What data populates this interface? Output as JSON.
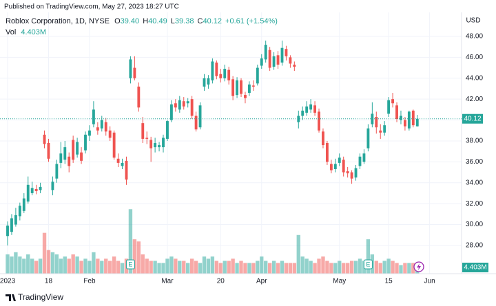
{
  "chart_data": {
    "type": "candlestick",
    "published": "Published on TradingView.com, May 27, 2023 18:27 UTC",
    "legend": {
      "symbol": "Roblox Corporation, 1D, NYSE",
      "open_label": "O",
      "open": "39.40",
      "high_label": "H",
      "high": "40.49",
      "low_label": "L",
      "low": "39.38",
      "close_label": "C",
      "close": "40.12",
      "change": "+0.61 (+1.54%)",
      "volume_label": "Vol",
      "volume": "4.403M"
    },
    "currency": "USD",
    "last_price_label": "40.12",
    "last_volume_label": "4.403M",
    "footer": "TradingView",
    "up_color": "#26a69a",
    "down_color": "#ef5350",
    "grid": true,
    "xlim": [
      -1.85,
      110.8
    ],
    "xticks": [
      {
        "value": 0,
        "label": "2023"
      },
      {
        "value": 10,
        "label": "18"
      },
      {
        "value": 20,
        "label": "Feb"
      },
      {
        "value": 39,
        "label": "Mar"
      },
      {
        "value": 52,
        "label": "20"
      },
      {
        "value": 62,
        "label": "Apr"
      },
      {
        "value": 81,
        "label": "May"
      },
      {
        "value": 93,
        "label": "15"
      },
      {
        "value": 103,
        "label": "Jun"
      }
    ],
    "ylim": [
      25.3,
      50.3
    ],
    "yticks": [
      {
        "value": 28,
        "label": "28.00"
      },
      {
        "value": 30,
        "label": "30.00"
      },
      {
        "value": 32,
        "label": "32.00"
      },
      {
        "value": 34,
        "label": "34.00"
      },
      {
        "value": 36,
        "label": "36.00"
      },
      {
        "value": 38,
        "label": "38.00"
      },
      {
        "value": 40,
        "label": "40.00"
      },
      {
        "value": 42,
        "label": "42.00"
      },
      {
        "value": 44,
        "label": "44.00"
      },
      {
        "value": 46,
        "label": "46.00"
      },
      {
        "value": 48,
        "label": "48.00"
      }
    ],
    "volume_ylim": [
      0,
      32
    ],
    "events": [
      {
        "x": 30,
        "label": "E"
      },
      {
        "x": 88,
        "label": "E"
      }
    ],
    "open": [
      28.9,
      29.3,
      30.0,
      30.8,
      31.3,
      32.2,
      33.0,
      33.4,
      33.3,
      38.6,
      37.8,
      33.3,
      34.4,
      35.9,
      36.2,
      36.5,
      38.1,
      36.7,
      36.9,
      37.1,
      38.5,
      39.6,
      39.3,
      39.2,
      39.8,
      39.0,
      38.8,
      36.3,
      35.6,
      36.1,
      44.0,
      45.0,
      43.2,
      39.7,
      38.3,
      38.1,
      37.4,
      37.4,
      37.4,
      38.2,
      40.0,
      41.6,
      41.0,
      41.8,
      41.6,
      42.0,
      40.4,
      39.3,
      43.2,
      43.4,
      43.8,
      45.5,
      44.4,
      44.0,
      44.8,
      43.9,
      42.4,
      43.8,
      42.4,
      42.6,
      43.3,
      43.5,
      45.2,
      45.8,
      46.7,
      45.1,
      46.2,
      45.5,
      46.8,
      46.0,
      45.3,
      39.8,
      40.4,
      40.7,
      41.0,
      41.4,
      40.8,
      38.9,
      37.8,
      35.8,
      35.3,
      35.9,
      36.2,
      35.1,
      35.0,
      34.5,
      35.6,
      36.0,
      37.3,
      39.6,
      40.3,
      39.0,
      38.8,
      40.6,
      42.0,
      41.4,
      40.0,
      40.0,
      39.2,
      40.9,
      39.4
    ],
    "high": [
      30.3,
      31.0,
      31.6,
      32.1,
      33.0,
      34.6,
      34.1,
      33.8,
      34.0,
      39.0,
      38.2,
      34.6,
      36.2,
      37.9,
      38.0,
      36.9,
      38.5,
      38.3,
      37.4,
      38.9,
      39.5,
      41.8,
      39.8,
      40.4,
      40.2,
      39.4,
      39.0,
      36.8,
      36.3,
      36.5,
      46.1,
      46.1,
      43.6,
      40.3,
      38.9,
      38.4,
      38.3,
      37.9,
      38.6,
      40.0,
      41.9,
      42.0,
      42.3,
      42.2,
      42.1,
      42.3,
      40.8,
      41.7,
      44.4,
      44.3,
      45.9,
      45.7,
      44.9,
      45.3,
      45.1,
      44.2,
      44.1,
      44.0,
      42.7,
      43.7,
      43.8,
      45.3,
      46.3,
      47.6,
      47.0,
      46.5,
      46.6,
      47.6,
      47.1,
      46.2,
      45.6,
      40.9,
      41.3,
      41.8,
      42.0,
      41.8,
      41.1,
      39.2,
      38.0,
      36.2,
      36.3,
      36.8,
      36.5,
      35.5,
      35.2,
      35.7,
      36.8,
      37.2,
      39.6,
      41.7,
      40.8,
      39.6,
      39.9,
      42.2,
      42.6,
      41.7,
      40.9,
      40.3,
      40.9,
      41.0,
      40.49
    ],
    "low": [
      28.0,
      29.0,
      29.8,
      30.4,
      31.1,
      32.0,
      32.8,
      32.9,
      33.0,
      37.3,
      36.0,
      32.8,
      34.0,
      35.4,
      35.8,
      35.0,
      35.9,
      36.4,
      35.8,
      36.8,
      38.0,
      39.3,
      38.6,
      38.9,
      38.5,
      38.0,
      36.2,
      35.5,
      35.3,
      33.8,
      43.5,
      43.8,
      40.8,
      37.8,
      37.7,
      36.0,
      36.9,
      37.0,
      36.9,
      38.0,
      39.8,
      40.8,
      40.7,
      41.0,
      41.2,
      40.1,
      38.9,
      39.1,
      42.8,
      43.0,
      43.5,
      43.9,
      43.6,
      43.7,
      43.4,
      41.9,
      42.1,
      42.2,
      41.6,
      42.3,
      42.8,
      43.3,
      44.9,
      45.5,
      44.7,
      44.8,
      44.9,
      45.2,
      45.7,
      45.0,
      44.7,
      39.2,
      40.0,
      40.4,
      40.7,
      40.4,
      38.8,
      37.3,
      35.7,
      34.9,
      35.0,
      35.6,
      34.6,
      34.5,
      33.9,
      34.2,
      35.3,
      35.8,
      37.0,
      39.3,
      38.7,
      38.2,
      38.5,
      40.3,
      41.2,
      39.8,
      39.6,
      39.0,
      39.0,
      39.3,
      39.38
    ],
    "close": [
      29.9,
      30.6,
      30.9,
      31.8,
      32.5,
      33.8,
      33.5,
      33.2,
      33.6,
      37.7,
      36.3,
      34.1,
      35.8,
      36.8,
      37.4,
      35.6,
      36.2,
      37.9,
      36.1,
      38.6,
      39.0,
      41.0,
      39.0,
      40.0,
      38.9,
      38.3,
      36.4,
      35.9,
      35.9,
      34.3,
      45.8,
      44.0,
      41.2,
      38.2,
      38.2,
      37.3,
      37.8,
      37.6,
      38.3,
      39.9,
      41.5,
      41.2,
      41.9,
      41.3,
      41.8,
      40.4,
      39.1,
      41.4,
      44.0,
      44.0,
      45.6,
      44.2,
      44.0,
      44.9,
      43.8,
      42.3,
      43.8,
      42.5,
      42.1,
      43.4,
      43.2,
      45.0,
      45.9,
      47.2,
      45.0,
      46.1,
      45.3,
      46.9,
      46.1,
      45.4,
      45.1,
      40.4,
      40.9,
      41.3,
      41.5,
      40.7,
      39.0,
      37.6,
      36.0,
      35.2,
      35.8,
      36.4,
      35.0,
      34.9,
      34.4,
      35.4,
      36.5,
      36.8,
      39.2,
      40.6,
      39.3,
      38.8,
      39.5,
      41.9,
      41.6,
      40.1,
      40.4,
      39.4,
      40.8,
      39.5,
      40.12
    ],
    "volume": [
      9,
      8,
      10,
      8,
      7,
      9,
      7,
      6,
      7,
      19,
      11,
      10,
      9,
      7,
      8,
      7,
      9,
      8,
      6,
      7,
      6,
      10,
      7,
      6,
      7,
      6,
      8,
      6,
      5,
      7,
      30,
      16,
      15,
      9,
      7,
      6,
      6,
      5,
      5,
      7,
      8,
      7,
      6,
      6,
      5,
      7,
      6,
      5,
      8,
      7,
      8,
      6,
      5,
      6,
      6,
      7,
      5,
      6,
      5,
      5,
      5,
      6,
      8,
      6,
      5,
      6,
      5,
      6,
      5,
      5,
      5,
      18,
      8,
      7,
      6,
      5,
      7,
      8,
      6,
      5,
      5,
      6,
      5,
      5,
      6,
      6,
      7,
      6,
      16,
      9,
      6,
      5,
      6,
      7,
      6,
      5,
      4,
      5,
      5,
      5,
      4.403
    ]
  }
}
